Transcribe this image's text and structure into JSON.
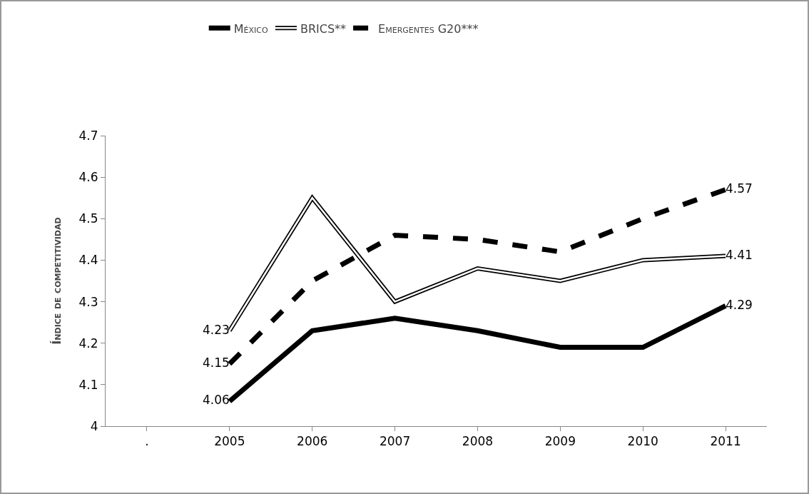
{
  "chart_data": {
    "type": "line",
    "ylabel": "Índice de competitividad",
    "categories": [
      ".",
      "2005",
      "2006",
      "2007",
      "2008",
      "2009",
      "2010",
      "2011"
    ],
    "series": [
      {
        "name": "México",
        "color": "#000000",
        "line_style": "solid",
        "values": [
          null,
          4.06,
          4.23,
          4.26,
          4.23,
          4.19,
          4.19,
          4.29
        ],
        "value_labels": [
          null,
          "4.06",
          null,
          null,
          null,
          null,
          null,
          "4.29"
        ]
      },
      {
        "name": "BRICS**",
        "color": "#ffffff",
        "line_style": "solid",
        "values": [
          null,
          4.23,
          4.55,
          4.3,
          4.38,
          4.35,
          4.4,
          4.41
        ],
        "value_labels": [
          null,
          "4.23",
          null,
          null,
          null,
          null,
          null,
          "4.41"
        ]
      },
      {
        "name": "Emergentes G20***",
        "color": "#000000",
        "line_style": "dashed",
        "values": [
          null,
          4.15,
          4.35,
          4.46,
          4.45,
          4.42,
          4.5,
          4.57
        ],
        "value_labels": [
          null,
          "4.15",
          null,
          null,
          null,
          null,
          null,
          "4.57"
        ]
      }
    ],
    "ylim": [
      4,
      4.7
    ],
    "yticks": [
      4,
      4.1,
      4.2,
      4.3,
      4.4,
      4.5,
      4.6,
      4.7
    ],
    "grid": false,
    "legend": "top",
    "marker": "none"
  }
}
